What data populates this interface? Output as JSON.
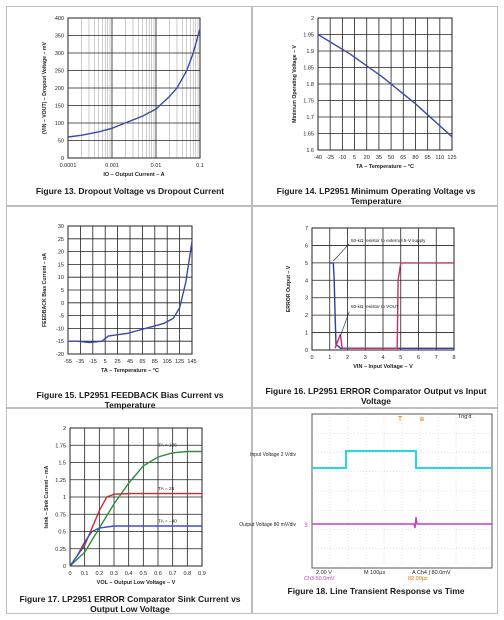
{
  "chart_data": [
    {
      "id": "fig13",
      "type": "line",
      "caption": "Figure 13. Dropout Voltage vs Dropout Current",
      "xlabel": "IO – Output Current – A",
      "ylabel": "(VIN – VOUT) – Dropout Voltage – mV",
      "xscale": "log",
      "xlim": [
        0.0001,
        0.1
      ],
      "ylim": [
        0,
        400
      ],
      "xticks": [
        "0.0001",
        "0.001",
        "0.01",
        "0.1"
      ],
      "yticks": [
        "0",
        "50",
        "100",
        "150",
        "200",
        "250",
        "300",
        "350",
        "400"
      ],
      "grid": true,
      "series": [
        {
          "x": [
            0.0001,
            0.0002,
            0.0005,
            0.001,
            0.002,
            0.005,
            0.01,
            0.02,
            0.03,
            0.05,
            0.07,
            0.1
          ],
          "y": [
            60,
            65,
            75,
            85,
            100,
            120,
            140,
            175,
            200,
            250,
            300,
            370
          ]
        }
      ]
    },
    {
      "id": "fig14",
      "type": "line",
      "caption": "Figure 14. LP2951 Minimum Operating Voltage vs Temperature",
      "xlabel": "TA – Temperature – °C",
      "ylabel": "Minimum Operating Voltage – V",
      "xlim": [
        -40,
        125
      ],
      "ylim": [
        1.6,
        2
      ],
      "xticks": [
        "-40",
        "-25",
        "-10",
        "5",
        "20",
        "35",
        "50",
        "65",
        "80",
        "95",
        "110",
        "125"
      ],
      "yticks": [
        "1.6",
        "1.65",
        "1.7",
        "1.75",
        "1.8",
        "1.85",
        "1.9",
        "1.95",
        "2"
      ],
      "grid": true,
      "series": [
        {
          "x": [
            -40,
            0,
            40,
            80,
            125
          ],
          "y": [
            1.95,
            1.89,
            1.82,
            1.74,
            1.64
          ]
        }
      ]
    },
    {
      "id": "fig15",
      "type": "line",
      "caption": "Figure 15. LP2951 FEEDBACK Bias Current vs Temperature",
      "xlabel": "TA – Temperature – °C",
      "ylabel": "FEEDBACK Bias Current – nA",
      "xlim": [
        -55,
        145
      ],
      "ylim": [
        -20,
        30
      ],
      "xticks": [
        "-55",
        "-35",
        "-15",
        "5",
        "25",
        "45",
        "65",
        "85",
        "105",
        "125",
        "145"
      ],
      "yticks": [
        "-20",
        "-15",
        "-10",
        "-5",
        "0",
        "5",
        "10",
        "15",
        "20",
        "25",
        "30"
      ],
      "grid": true,
      "series": [
        {
          "x": [
            -55,
            -40,
            -20,
            0,
            10,
            40,
            70,
            100,
            115,
            125,
            135,
            145
          ],
          "y": [
            -15,
            -15,
            -15.5,
            -15,
            -13,
            -12,
            -10,
            -8,
            -6,
            -2,
            8,
            24
          ]
        }
      ]
    },
    {
      "id": "fig16",
      "type": "line",
      "caption": "Figure 16. LP2951 ERROR Comparator Output vs Input Voltage",
      "xlabel": "VIN – Input Voltage – V",
      "ylabel": "ERROR Output – V",
      "xlim": [
        0,
        8
      ],
      "ylim": [
        0,
        7
      ],
      "xticks": [
        "0",
        "1",
        "2",
        "3",
        "4",
        "5",
        "6",
        "7",
        "8"
      ],
      "yticks": [
        "0",
        "1",
        "2",
        "3",
        "4",
        "5",
        "6",
        "7"
      ],
      "grid": true,
      "annotations": [
        "50-kΩ resistor to external 5-V supply",
        "50-kΩ resistor to VOUT"
      ],
      "series": [
        {
          "color": "#2a3fa0",
          "x": [
            1,
            1.2,
            1.25,
            1.3,
            1.35,
            1.5,
            1.6,
            8
          ],
          "y": [
            5,
            5,
            4,
            2,
            0.3,
            0.2,
            0.1,
            0.1
          ]
        },
        {
          "color": "#c0306a",
          "x": [
            1.3,
            1.6,
            1.7,
            4.8,
            4.85,
            5,
            8
          ],
          "y": [
            0.1,
            0.9,
            0.1,
            0.1,
            4,
            5,
            5
          ]
        }
      ]
    },
    {
      "id": "fig17",
      "type": "line",
      "caption": "Figure 17. LP2951 ERROR Comparator Sink Current vs Output Low Voltage",
      "xlabel": "VOL – Output Low Voltage – V",
      "ylabel": "Isink – Sink Current – mA",
      "xlim": [
        0,
        0.9
      ],
      "ylim": [
        0,
        2
      ],
      "xticks": [
        "0",
        "0.1",
        "0.2",
        "0.3",
        "0.4",
        "0.5",
        "0.6",
        "0.7",
        "0.8",
        "0.9"
      ],
      "yticks": [
        "0",
        "0.25",
        "0.5",
        "0.75",
        "1",
        "1.25",
        "1.5",
        "1.75",
        "2"
      ],
      "grid": true,
      "series": [
        {
          "name": "TA = 125",
          "color": "#2e8b3a",
          "x": [
            0,
            0.1,
            0.2,
            0.3,
            0.4,
            0.5,
            0.6,
            0.7,
            0.8,
            0.9
          ],
          "y": [
            0,
            0.2,
            0.55,
            0.9,
            1.2,
            1.45,
            1.58,
            1.64,
            1.66,
            1.66
          ]
        },
        {
          "name": "TA = 25",
          "color": "#cc2b2b",
          "x": [
            0,
            0.1,
            0.15,
            0.2,
            0.25,
            0.3,
            0.4,
            0.5,
            0.6,
            0.9
          ],
          "y": [
            0,
            0.3,
            0.55,
            0.8,
            1.0,
            1.04,
            1.05,
            1.05,
            1.05,
            1.05
          ]
        },
        {
          "name": "TA = –40",
          "color": "#3b50c8",
          "x": [
            0,
            0.05,
            0.1,
            0.15,
            0.2,
            0.3,
            0.4,
            0.6,
            0.9
          ],
          "y": [
            0,
            0.15,
            0.35,
            0.5,
            0.55,
            0.58,
            0.58,
            0.58,
            0.58
          ]
        }
      ]
    },
    {
      "id": "fig18",
      "type": "line",
      "caption": "Figure 18. Line Transient Response vs Time",
      "labels": {
        "input": "Input Voltage 2 V/div",
        "output": "Output Voltage 80 mV/div",
        "trig": "Trig'd",
        "scale1": "2.00 V",
        "timebase": "M 100µs",
        "trigger": "A Ch4 ∫ 80.0mV",
        "scale2": "Ch3 50.0mV",
        "delta": "82.00µs"
      }
    }
  ]
}
